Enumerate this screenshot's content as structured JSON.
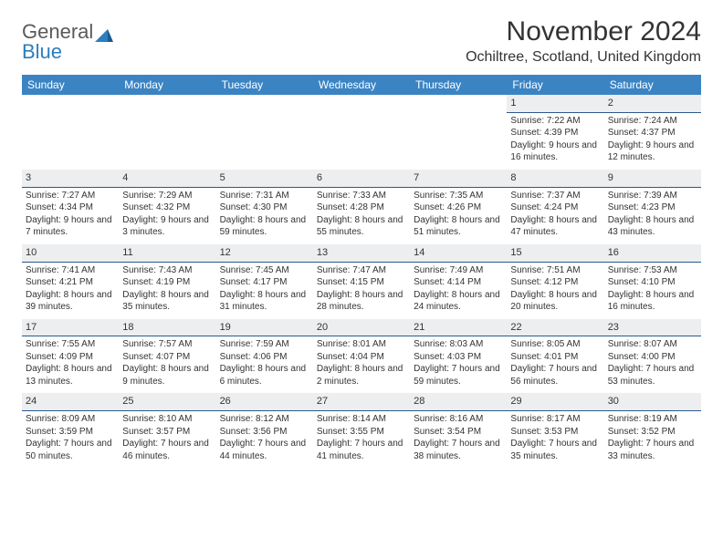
{
  "logo": {
    "part1": "General",
    "part2": "Blue"
  },
  "title": "November 2024",
  "location": "Ochiltree, Scotland, United Kingdom",
  "colors": {
    "header_bg": "#3b84c4",
    "header_text": "#ffffff",
    "separator_bg": "#eceef0",
    "separator_border": "#2b5a8a",
    "logo_blue": "#2b7ebf",
    "logo_gray": "#5a5a5a",
    "text": "#333333"
  },
  "day_names": [
    "Sunday",
    "Monday",
    "Tuesday",
    "Wednesday",
    "Thursday",
    "Friday",
    "Saturday"
  ],
  "weeks": [
    [
      {
        "empty": true
      },
      {
        "empty": true
      },
      {
        "empty": true
      },
      {
        "empty": true
      },
      {
        "empty": true
      },
      {
        "date": "1",
        "sunrise": "Sunrise: 7:22 AM",
        "sunset": "Sunset: 4:39 PM",
        "daylight": "Daylight: 9 hours and 16 minutes."
      },
      {
        "date": "2",
        "sunrise": "Sunrise: 7:24 AM",
        "sunset": "Sunset: 4:37 PM",
        "daylight": "Daylight: 9 hours and 12 minutes."
      }
    ],
    [
      {
        "date": "3",
        "sunrise": "Sunrise: 7:27 AM",
        "sunset": "Sunset: 4:34 PM",
        "daylight": "Daylight: 9 hours and 7 minutes."
      },
      {
        "date": "4",
        "sunrise": "Sunrise: 7:29 AM",
        "sunset": "Sunset: 4:32 PM",
        "daylight": "Daylight: 9 hours and 3 minutes."
      },
      {
        "date": "5",
        "sunrise": "Sunrise: 7:31 AM",
        "sunset": "Sunset: 4:30 PM",
        "daylight": "Daylight: 8 hours and 59 minutes."
      },
      {
        "date": "6",
        "sunrise": "Sunrise: 7:33 AM",
        "sunset": "Sunset: 4:28 PM",
        "daylight": "Daylight: 8 hours and 55 minutes."
      },
      {
        "date": "7",
        "sunrise": "Sunrise: 7:35 AM",
        "sunset": "Sunset: 4:26 PM",
        "daylight": "Daylight: 8 hours and 51 minutes."
      },
      {
        "date": "8",
        "sunrise": "Sunrise: 7:37 AM",
        "sunset": "Sunset: 4:24 PM",
        "daylight": "Daylight: 8 hours and 47 minutes."
      },
      {
        "date": "9",
        "sunrise": "Sunrise: 7:39 AM",
        "sunset": "Sunset: 4:23 PM",
        "daylight": "Daylight: 8 hours and 43 minutes."
      }
    ],
    [
      {
        "date": "10",
        "sunrise": "Sunrise: 7:41 AM",
        "sunset": "Sunset: 4:21 PM",
        "daylight": "Daylight: 8 hours and 39 minutes."
      },
      {
        "date": "11",
        "sunrise": "Sunrise: 7:43 AM",
        "sunset": "Sunset: 4:19 PM",
        "daylight": "Daylight: 8 hours and 35 minutes."
      },
      {
        "date": "12",
        "sunrise": "Sunrise: 7:45 AM",
        "sunset": "Sunset: 4:17 PM",
        "daylight": "Daylight: 8 hours and 31 minutes."
      },
      {
        "date": "13",
        "sunrise": "Sunrise: 7:47 AM",
        "sunset": "Sunset: 4:15 PM",
        "daylight": "Daylight: 8 hours and 28 minutes."
      },
      {
        "date": "14",
        "sunrise": "Sunrise: 7:49 AM",
        "sunset": "Sunset: 4:14 PM",
        "daylight": "Daylight: 8 hours and 24 minutes."
      },
      {
        "date": "15",
        "sunrise": "Sunrise: 7:51 AM",
        "sunset": "Sunset: 4:12 PM",
        "daylight": "Daylight: 8 hours and 20 minutes."
      },
      {
        "date": "16",
        "sunrise": "Sunrise: 7:53 AM",
        "sunset": "Sunset: 4:10 PM",
        "daylight": "Daylight: 8 hours and 16 minutes."
      }
    ],
    [
      {
        "date": "17",
        "sunrise": "Sunrise: 7:55 AM",
        "sunset": "Sunset: 4:09 PM",
        "daylight": "Daylight: 8 hours and 13 minutes."
      },
      {
        "date": "18",
        "sunrise": "Sunrise: 7:57 AM",
        "sunset": "Sunset: 4:07 PM",
        "daylight": "Daylight: 8 hours and 9 minutes."
      },
      {
        "date": "19",
        "sunrise": "Sunrise: 7:59 AM",
        "sunset": "Sunset: 4:06 PM",
        "daylight": "Daylight: 8 hours and 6 minutes."
      },
      {
        "date": "20",
        "sunrise": "Sunrise: 8:01 AM",
        "sunset": "Sunset: 4:04 PM",
        "daylight": "Daylight: 8 hours and 2 minutes."
      },
      {
        "date": "21",
        "sunrise": "Sunrise: 8:03 AM",
        "sunset": "Sunset: 4:03 PM",
        "daylight": "Daylight: 7 hours and 59 minutes."
      },
      {
        "date": "22",
        "sunrise": "Sunrise: 8:05 AM",
        "sunset": "Sunset: 4:01 PM",
        "daylight": "Daylight: 7 hours and 56 minutes."
      },
      {
        "date": "23",
        "sunrise": "Sunrise: 8:07 AM",
        "sunset": "Sunset: 4:00 PM",
        "daylight": "Daylight: 7 hours and 53 minutes."
      }
    ],
    [
      {
        "date": "24",
        "sunrise": "Sunrise: 8:09 AM",
        "sunset": "Sunset: 3:59 PM",
        "daylight": "Daylight: 7 hours and 50 minutes."
      },
      {
        "date": "25",
        "sunrise": "Sunrise: 8:10 AM",
        "sunset": "Sunset: 3:57 PM",
        "daylight": "Daylight: 7 hours and 46 minutes."
      },
      {
        "date": "26",
        "sunrise": "Sunrise: 8:12 AM",
        "sunset": "Sunset: 3:56 PM",
        "daylight": "Daylight: 7 hours and 44 minutes."
      },
      {
        "date": "27",
        "sunrise": "Sunrise: 8:14 AM",
        "sunset": "Sunset: 3:55 PM",
        "daylight": "Daylight: 7 hours and 41 minutes."
      },
      {
        "date": "28",
        "sunrise": "Sunrise: 8:16 AM",
        "sunset": "Sunset: 3:54 PM",
        "daylight": "Daylight: 7 hours and 38 minutes."
      },
      {
        "date": "29",
        "sunrise": "Sunrise: 8:17 AM",
        "sunset": "Sunset: 3:53 PM",
        "daylight": "Daylight: 7 hours and 35 minutes."
      },
      {
        "date": "30",
        "sunrise": "Sunrise: 8:19 AM",
        "sunset": "Sunset: 3:52 PM",
        "daylight": "Daylight: 7 hours and 33 minutes."
      }
    ]
  ]
}
